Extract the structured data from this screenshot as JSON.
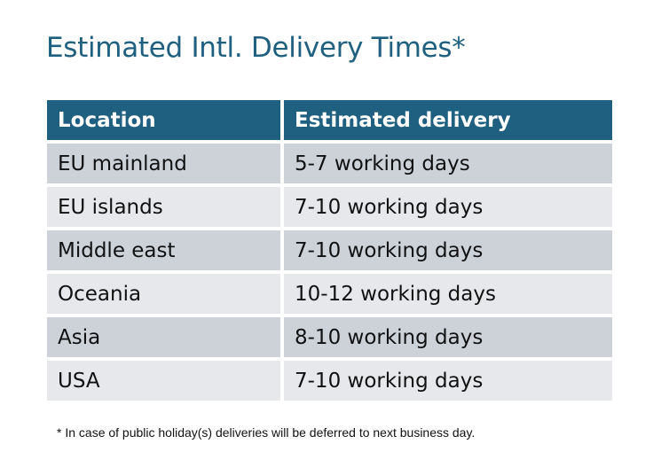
{
  "title": "Estimated Intl. Delivery Times*",
  "table": {
    "headers": [
      "Location",
      "Estimated delivery"
    ],
    "rows": [
      [
        "EU mainland",
        "5-7 working days"
      ],
      [
        "EU islands",
        "7-10 working days"
      ],
      [
        "Middle east",
        "7-10 working days"
      ],
      [
        "Oceania",
        "10-12 working days"
      ],
      [
        "Asia",
        "8-10 working days"
      ],
      [
        "USA",
        "7-10 working days"
      ]
    ]
  },
  "footnote": "* In case of public holiday(s) deliveries will be deferred to next business day.",
  "colors": {
    "header": "#1f5f7f",
    "row_odd": "#cdd2d9",
    "row_even": "#e6e8eb",
    "title": "#1f5f7f"
  }
}
